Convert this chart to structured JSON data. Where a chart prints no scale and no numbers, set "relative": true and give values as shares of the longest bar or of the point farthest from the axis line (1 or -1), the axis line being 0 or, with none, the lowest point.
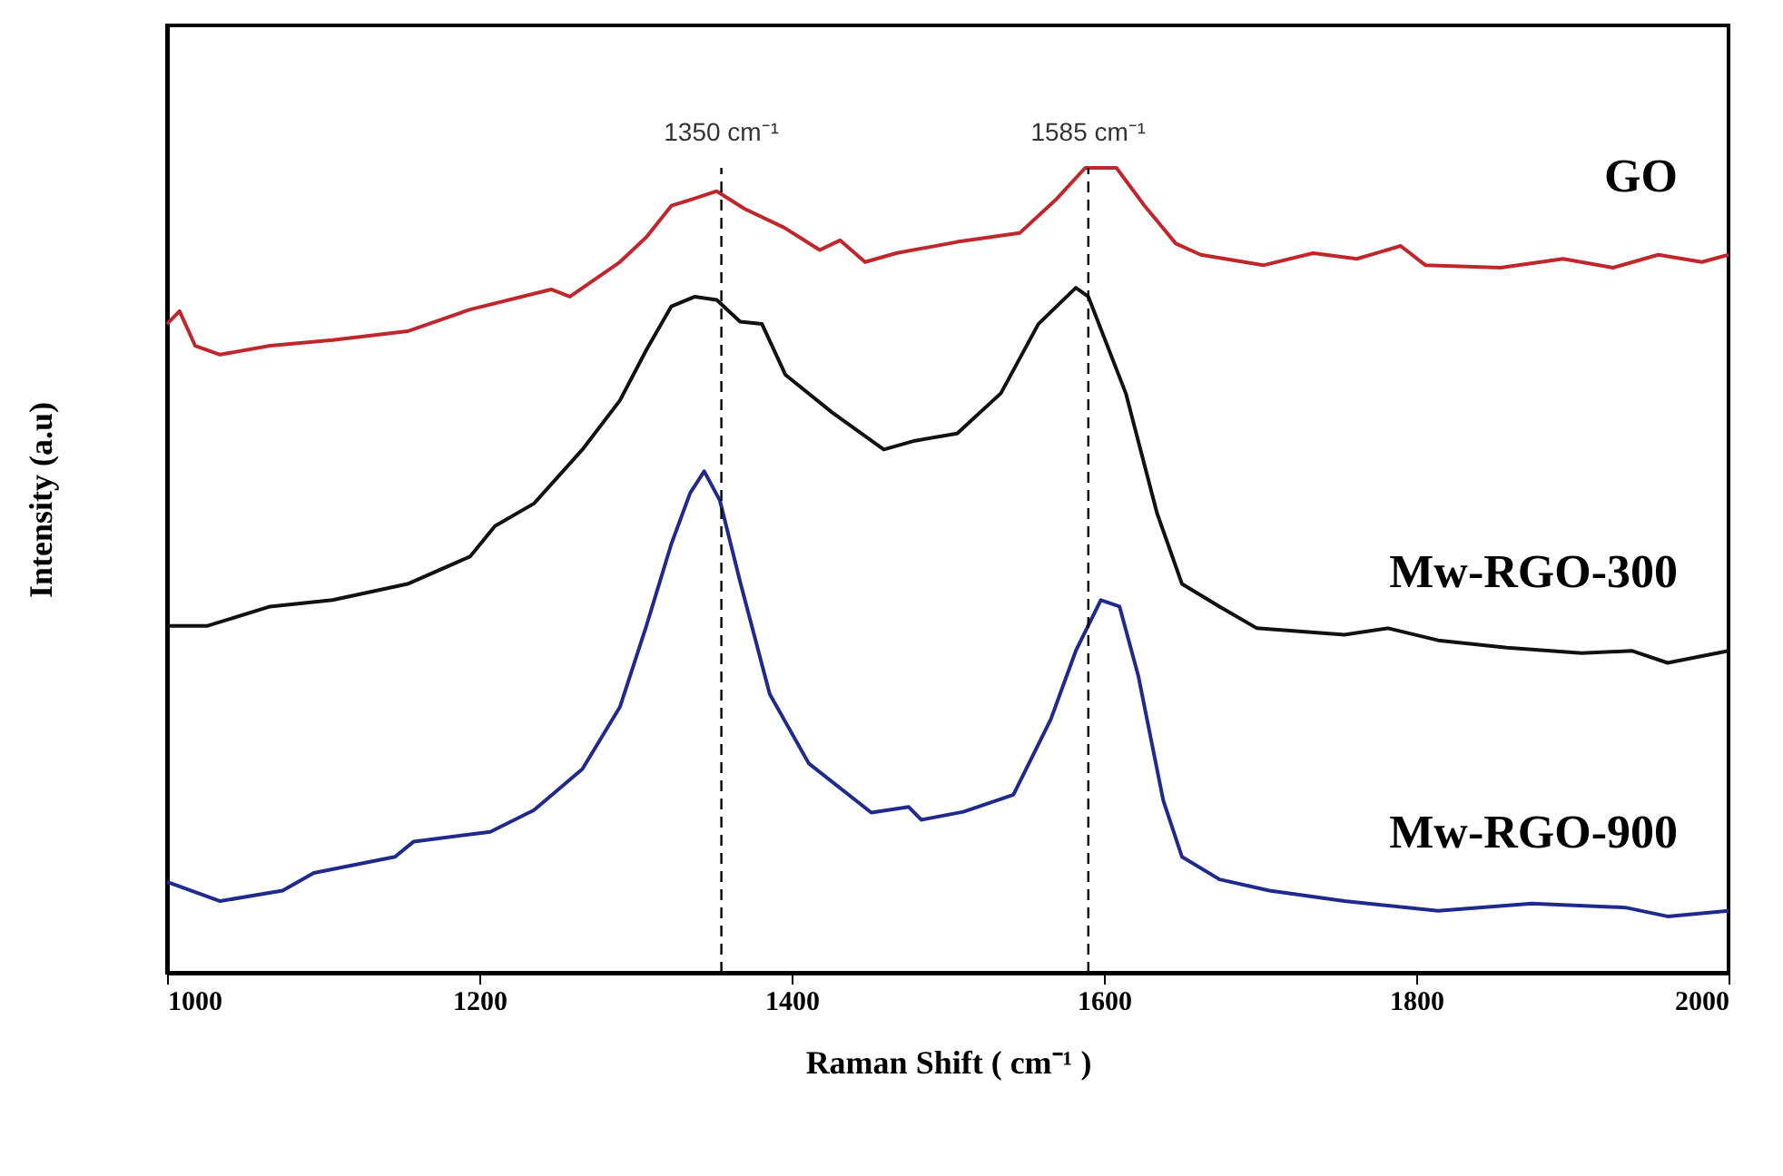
{
  "chart_data": {
    "type": "line",
    "relative": true,
    "xlabel": "Raman Shift ( cm⁻¹ )",
    "ylabel": "Intensity (a.u)",
    "xlim": [
      1000,
      2000
    ],
    "xticks": [
      1000,
      1200,
      1400,
      1600,
      1800,
      2000
    ],
    "grid": false,
    "line_style": "solid",
    "marker": "none",
    "ref_lines": [
      {
        "axis": "x",
        "value": 1355,
        "label": "1350 cm⁻¹",
        "color": "#000000",
        "line_style": "dashed"
      },
      {
        "axis": "x",
        "value": 1590,
        "label": "1585 cm⁻¹",
        "color": "#000000",
        "line_style": "dashed"
      }
    ],
    "series": [
      {
        "name": "GO",
        "color": "#c0272d",
        "x": [
          1000,
          1008,
          1018,
          1034,
          1066,
          1106,
          1154,
          1194,
          1246,
          1258,
          1290,
          1307,
          1323,
          1338,
          1352,
          1370,
          1395,
          1418,
          1431,
          1447,
          1467,
          1506,
          1546,
          1570,
          1588,
          1608,
          1626,
          1646,
          1662,
          1702,
          1734,
          1762,
          1790,
          1806,
          1854,
          1894,
          1926,
          1955,
          1983,
          2000
        ],
        "values": [
          0.806,
          0.822,
          0.779,
          0.768,
          0.779,
          0.786,
          0.797,
          0.824,
          0.849,
          0.84,
          0.883,
          0.914,
          0.953,
          0.962,
          0.971,
          0.949,
          0.926,
          0.898,
          0.91,
          0.883,
          0.894,
          0.908,
          0.919,
          0.962,
          1.0,
          1.0,
          0.953,
          0.906,
          0.892,
          0.879,
          0.894,
          0.887,
          0.903,
          0.879,
          0.876,
          0.887,
          0.876,
          0.892,
          0.883,
          0.892
        ]
      },
      {
        "name": "Mw-RGO-300",
        "color": "#111111",
        "x": [
          1000,
          1026,
          1066,
          1106,
          1154,
          1194,
          1210,
          1235,
          1266,
          1290,
          1307,
          1323,
          1338,
          1352,
          1367,
          1381,
          1396,
          1426,
          1459,
          1479,
          1506,
          1534,
          1558,
          1582,
          1590,
          1614,
          1634,
          1650,
          1674,
          1698,
          1754,
          1782,
          1814,
          1858,
          1906,
          1938,
          1961,
          2000
        ],
        "values": [
          0.431,
          0.431,
          0.455,
          0.463,
          0.483,
          0.517,
          0.555,
          0.583,
          0.65,
          0.711,
          0.774,
          0.828,
          0.84,
          0.836,
          0.809,
          0.806,
          0.743,
          0.696,
          0.65,
          0.661,
          0.67,
          0.72,
          0.806,
          0.851,
          0.84,
          0.72,
          0.571,
          0.483,
          0.455,
          0.428,
          0.42,
          0.428,
          0.413,
          0.404,
          0.397,
          0.4,
          0.385,
          0.4
        ]
      },
      {
        "name": "Mw-RGO-900",
        "color": "#1f2a8c",
        "x": [
          1000,
          1034,
          1074,
          1094,
          1146,
          1158,
          1207,
          1235,
          1266,
          1290,
          1307,
          1323,
          1335,
          1344,
          1354,
          1367,
          1386,
          1411,
          1451,
          1475,
          1483,
          1510,
          1542,
          1566,
          1582,
          1598,
          1610,
          1622,
          1638,
          1650,
          1674,
          1706,
          1754,
          1814,
          1874,
          1934,
          1961,
          2000
        ],
        "values": [
          0.113,
          0.089,
          0.102,
          0.124,
          0.144,
          0.163,
          0.175,
          0.202,
          0.253,
          0.33,
          0.431,
          0.533,
          0.596,
          0.623,
          0.587,
          0.486,
          0.346,
          0.26,
          0.199,
          0.206,
          0.19,
          0.2,
          0.221,
          0.315,
          0.4,
          0.463,
          0.455,
          0.369,
          0.214,
          0.144,
          0.116,
          0.102,
          0.089,
          0.077,
          0.086,
          0.081,
          0.07,
          0.077
        ]
      }
    ]
  }
}
